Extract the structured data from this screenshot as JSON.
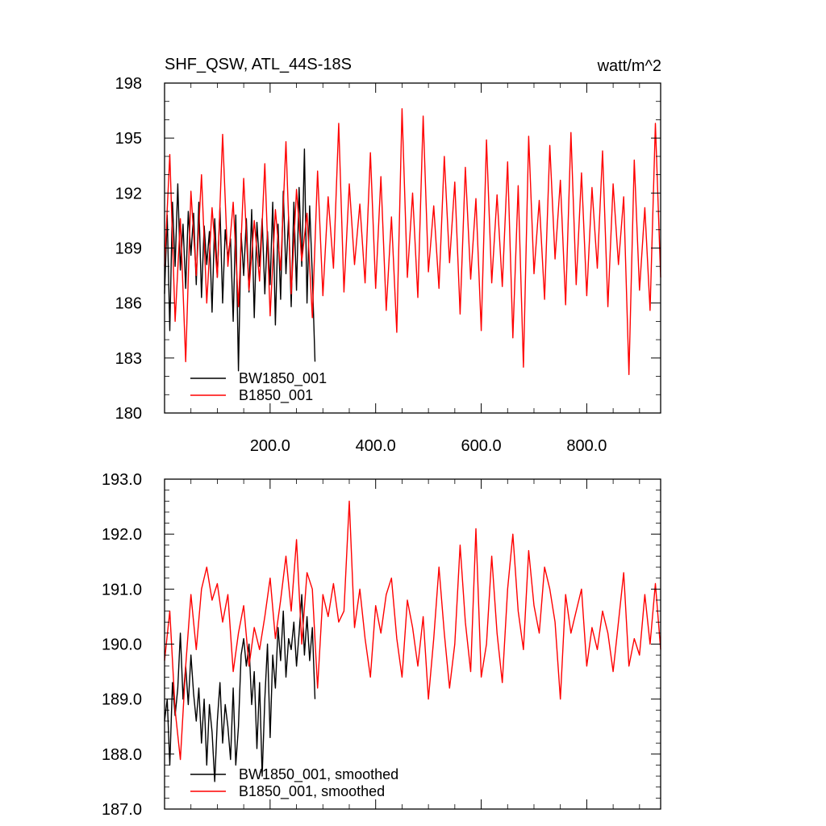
{
  "chart_data": [
    {
      "type": "line",
      "title": "SHF_QSW, ATL_44S-18S",
      "units": "watt/m^2",
      "xlim": [
        0,
        940
      ],
      "ylim": [
        180,
        198
      ],
      "xticks": [
        200,
        400,
        600,
        800
      ],
      "xtick_labels": [
        "200.0",
        "400.0",
        "600.0",
        "800.0"
      ],
      "yticks": [
        180,
        183,
        186,
        189,
        192,
        195,
        198
      ],
      "ytick_labels": [
        "180",
        "183",
        "186",
        "189",
        "192",
        "195",
        "198"
      ],
      "legend_position": "bottom-left",
      "series": [
        {
          "name": "BW1850_001",
          "color": "#000000",
          "x": [
            0,
            5,
            10,
            15,
            20,
            25,
            30,
            35,
            40,
            45,
            50,
            55,
            60,
            65,
            70,
            75,
            80,
            85,
            90,
            95,
            100,
            105,
            110,
            115,
            120,
            125,
            130,
            135,
            140,
            145,
            150,
            155,
            160,
            165,
            170,
            175,
            180,
            185,
            190,
            195,
            200,
            205,
            210,
            215,
            220,
            225,
            230,
            235,
            240,
            245,
            250,
            255,
            260,
            265,
            270,
            275,
            280,
            285
          ],
          "y": [
            186.5,
            190.8,
            184.5,
            191.5,
            188.0,
            192.5,
            187.8,
            190.3,
            186.8,
            191.0,
            188.6,
            190.9,
            187.0,
            191.5,
            186.3,
            190.2,
            188.1,
            189.9,
            185.5,
            190.6,
            187.4,
            191.2,
            186.0,
            190.0,
            188.5,
            189.5,
            185.0,
            190.8,
            182.3,
            189.8,
            187.5,
            190.6,
            186.6,
            191.1,
            185.2,
            190.4,
            188.0,
            190.6,
            186.5,
            189.9,
            187.0,
            191.5,
            184.8,
            190.3,
            186.2,
            192.1,
            187.6,
            190.7,
            185.8,
            191.5,
            186.7,
            192.3,
            188.0,
            194.4,
            186.0,
            191.3,
            187.5,
            182.8
          ]
        },
        {
          "name": "B1850_001",
          "color": "#ff0000",
          "x": [
            0,
            10,
            20,
            30,
            40,
            50,
            60,
            70,
            80,
            90,
            100,
            110,
            120,
            130,
            140,
            150,
            160,
            170,
            180,
            190,
            200,
            210,
            220,
            230,
            240,
            250,
            260,
            270,
            280,
            290,
            300,
            310,
            320,
            330,
            340,
            350,
            360,
            370,
            380,
            390,
            400,
            410,
            420,
            430,
            440,
            450,
            460,
            470,
            480,
            490,
            500,
            510,
            520,
            530,
            540,
            550,
            560,
            570,
            580,
            590,
            600,
            610,
            620,
            630,
            640,
            650,
            660,
            670,
            680,
            690,
            700,
            710,
            720,
            730,
            740,
            750,
            760,
            770,
            780,
            790,
            800,
            810,
            820,
            830,
            840,
            850,
            860,
            870,
            880,
            890,
            900,
            910,
            920,
            930,
            940
          ],
          "y": [
            188.0,
            194.1,
            185.0,
            190.6,
            182.8,
            192.1,
            187.5,
            193.0,
            186.0,
            191.2,
            187.4,
            195.2,
            188.0,
            191.5,
            185.8,
            192.8,
            186.7,
            190.5,
            187.2,
            193.6,
            185.3,
            191.1,
            187.8,
            194.8,
            186.5,
            192.2,
            188.3,
            190.9,
            185.2,
            193.2,
            186.4,
            191.8,
            187.9,
            195.8,
            186.6,
            192.5,
            188.1,
            191.4,
            187.1,
            194.2,
            186.8,
            192.9,
            185.6,
            190.7,
            184.4,
            196.6,
            187.4,
            192.0,
            186.3,
            196.2,
            187.7,
            191.3,
            186.8,
            194.0,
            188.2,
            192.6,
            185.4,
            193.4,
            187.3,
            191.7,
            184.5,
            194.9,
            187.1,
            191.9,
            186.9,
            193.7,
            184.1,
            192.4,
            182.5,
            195.1,
            187.6,
            191.6,
            186.2,
            194.6,
            188.4,
            192.7,
            185.9,
            195.3,
            187.0,
            193.1,
            186.4,
            192.3,
            187.9,
            194.3,
            185.8,
            192.5,
            188.1,
            191.8,
            182.1,
            193.8,
            186.7,
            191.2,
            185.6,
            195.8,
            187.4
          ]
        }
      ]
    },
    {
      "type": "line",
      "xlim": [
        0,
        940
      ],
      "ylim": [
        187,
        193
      ],
      "yticks": [
        187,
        188,
        189,
        190,
        191,
        192,
        193
      ],
      "ytick_labels": [
        "187.0",
        "188.0",
        "189.0",
        "190.0",
        "191.0",
        "192.0",
        "193.0"
      ],
      "legend_position": "bottom-left",
      "series": [
        {
          "name": "BW1850_001, smoothed",
          "color": "#000000",
          "x": [
            0,
            5,
            10,
            15,
            20,
            25,
            30,
            35,
            40,
            45,
            50,
            55,
            60,
            65,
            70,
            75,
            80,
            85,
            90,
            95,
            100,
            105,
            110,
            115,
            120,
            125,
            130,
            135,
            140,
            145,
            150,
            155,
            160,
            165,
            170,
            175,
            180,
            185,
            190,
            195,
            200,
            205,
            210,
            215,
            220,
            225,
            230,
            235,
            240,
            245,
            250,
            255,
            260,
            265,
            270,
            275,
            280,
            285
          ],
          "y": [
            188.6,
            189.0,
            187.8,
            189.3,
            188.7,
            189.2,
            190.2,
            189.0,
            189.6,
            188.9,
            189.8,
            189.1,
            188.6,
            189.2,
            188.2,
            189.0,
            187.8,
            188.9,
            188.4,
            187.5,
            188.6,
            189.3,
            188.2,
            188.9,
            188.5,
            187.9,
            189.2,
            187.8,
            188.5,
            189.8,
            190.1,
            189.6,
            190.0,
            188.9,
            189.5,
            188.1,
            189.3,
            187.6,
            189.0,
            190.0,
            188.3,
            189.8,
            189.2,
            190.3,
            189.7,
            190.6,
            189.4,
            190.1,
            189.9,
            190.4,
            189.6,
            190.2,
            190.9,
            189.8,
            190.5,
            189.7,
            190.3,
            189.0
          ]
        },
        {
          "name": "B1850_001, smoothed",
          "color": "#ff0000",
          "x": [
            0,
            10,
            20,
            30,
            40,
            50,
            60,
            70,
            80,
            90,
            100,
            110,
            120,
            130,
            140,
            150,
            160,
            170,
            180,
            190,
            200,
            210,
            220,
            230,
            240,
            250,
            260,
            270,
            280,
            290,
            300,
            310,
            320,
            330,
            340,
            350,
            360,
            370,
            380,
            390,
            400,
            410,
            420,
            430,
            440,
            450,
            460,
            470,
            480,
            490,
            500,
            510,
            520,
            530,
            540,
            550,
            560,
            570,
            580,
            590,
            600,
            610,
            620,
            630,
            640,
            650,
            660,
            670,
            680,
            690,
            700,
            710,
            720,
            730,
            740,
            750,
            760,
            770,
            780,
            790,
            800,
            810,
            820,
            830,
            840,
            850,
            860,
            870,
            880,
            890,
            900,
            910,
            920,
            930,
            940
          ],
          "y": [
            189.7,
            190.6,
            188.8,
            187.9,
            189.6,
            190.9,
            189.9,
            191.0,
            191.4,
            190.8,
            191.1,
            190.4,
            190.9,
            189.5,
            190.2,
            190.7,
            189.6,
            190.3,
            189.9,
            190.5,
            191.2,
            190.1,
            190.8,
            191.6,
            190.6,
            191.9,
            190.0,
            191.3,
            191.0,
            189.2,
            190.9,
            190.5,
            191.1,
            190.4,
            190.6,
            192.6,
            190.3,
            191.0,
            190.1,
            189.4,
            190.7,
            190.2,
            190.9,
            191.2,
            190.1,
            189.4,
            190.8,
            190.3,
            189.6,
            190.5,
            189.0,
            190.1,
            191.4,
            190.2,
            189.2,
            190.0,
            191.8,
            190.4,
            189.5,
            192.1,
            189.4,
            190.0,
            191.6,
            190.2,
            189.3,
            191.0,
            192.0,
            190.6,
            189.9,
            191.7,
            190.7,
            190.2,
            191.4,
            191.0,
            190.4,
            189.0,
            190.9,
            190.2,
            190.6,
            191.0,
            189.6,
            190.3,
            189.9,
            190.6,
            190.2,
            189.5,
            190.4,
            191.3,
            189.6,
            190.1,
            189.8,
            190.9,
            190.0,
            191.1,
            189.9
          ]
        }
      ]
    }
  ]
}
